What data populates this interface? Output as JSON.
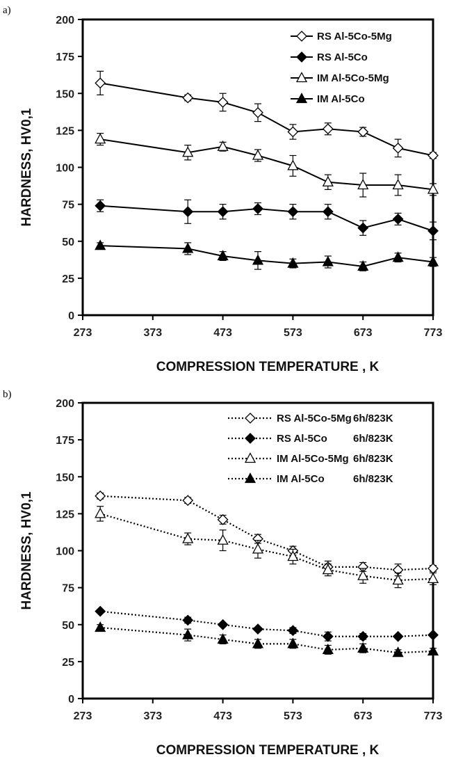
{
  "chart_data": [
    {
      "panel": "a)",
      "type": "line",
      "xlabel": "COMPRESSION TEMPERATURE , K",
      "ylabel": "HARDNESS, HV0,1",
      "xlim": [
        273,
        773
      ],
      "ylim": [
        0,
        200
      ],
      "xticks": [
        273,
        373,
        473,
        573,
        673,
        773
      ],
      "yticks": [
        0,
        25,
        50,
        75,
        100,
        125,
        150,
        175,
        200
      ],
      "grid": false,
      "legend_position": "top-right",
      "line_style": "solid",
      "series": [
        {
          "name": "RS Al-5Co-5Mg",
          "marker": "diamond-open",
          "x": [
            298,
            423,
            473,
            523,
            573,
            623,
            673,
            723,
            773
          ],
          "y": [
            157,
            147,
            144,
            137,
            124,
            126,
            124,
            113,
            108
          ],
          "err": [
            8,
            2,
            6,
            6,
            5,
            4,
            3,
            6,
            2
          ]
        },
        {
          "name": "RS Al-5Co",
          "marker": "diamond-filled",
          "x": [
            298,
            423,
            473,
            523,
            573,
            623,
            673,
            723,
            773
          ],
          "y": [
            74,
            70,
            70,
            72,
            70,
            70,
            59,
            65,
            57
          ],
          "err": [
            4,
            8,
            5,
            4,
            5,
            5,
            5,
            4,
            6
          ]
        },
        {
          "name": "IM Al-5Co-5Mg",
          "marker": "triangle-open",
          "x": [
            298,
            423,
            473,
            523,
            573,
            623,
            673,
            723,
            773
          ],
          "y": [
            119,
            110,
            114,
            108,
            101,
            90,
            88,
            88,
            85
          ],
          "err": [
            4,
            5,
            3,
            4,
            7,
            5,
            8,
            7,
            4
          ]
        },
        {
          "name": "IM Al-5Co",
          "marker": "triangle-filled",
          "x": [
            298,
            423,
            473,
            523,
            573,
            623,
            673,
            723,
            773
          ],
          "y": [
            47,
            45,
            40,
            37,
            35,
            36,
            33,
            39,
            36
          ],
          "err": [
            2,
            4,
            3,
            6,
            3,
            4,
            3,
            3,
            3
          ]
        }
      ]
    },
    {
      "panel": "b)",
      "type": "line",
      "xlabel": "COMPRESSION TEMPERATURE , K",
      "ylabel": "HARDNESS, HV0,1",
      "xlim": [
        273,
        773
      ],
      "ylim": [
        0,
        200
      ],
      "xticks": [
        273,
        373,
        473,
        573,
        673,
        773
      ],
      "yticks": [
        0,
        25,
        50,
        75,
        100,
        125,
        150,
        175,
        200
      ],
      "grid": false,
      "legend_position": "top-right",
      "line_style": "dotted",
      "series": [
        {
          "name": "RS Al-5Co-5Mg",
          "suffix": "6h/823K",
          "marker": "diamond-open",
          "x": [
            298,
            423,
            473,
            523,
            573,
            623,
            673,
            723,
            773
          ],
          "y": [
            137,
            134,
            121,
            108,
            100,
            89,
            89,
            87,
            88
          ],
          "err": [
            2,
            2,
            3,
            3,
            3,
            4,
            3,
            4,
            2
          ]
        },
        {
          "name": "RS Al-5Co",
          "suffix": "6h/823K",
          "marker": "diamond-filled",
          "x": [
            298,
            423,
            473,
            523,
            573,
            623,
            673,
            723,
            773
          ],
          "y": [
            59,
            53,
            50,
            47,
            46,
            42,
            42,
            42,
            43
          ],
          "err": [
            1,
            2,
            1,
            1,
            2,
            3,
            2,
            1,
            1
          ]
        },
        {
          "name": "IM Al-5Co-5Mg",
          "suffix": "6h/823K",
          "marker": "triangle-open",
          "x": [
            298,
            423,
            473,
            523,
            573,
            623,
            673,
            723,
            773
          ],
          "y": [
            125,
            108,
            107,
            101,
            96,
            87,
            83,
            80,
            81
          ],
          "err": [
            5,
            4,
            7,
            6,
            5,
            4,
            5,
            5,
            4
          ]
        },
        {
          "name": "IM Al-5Co",
          "suffix": "6h/823K",
          "marker": "triangle-filled",
          "x": [
            298,
            423,
            473,
            523,
            573,
            623,
            673,
            723,
            773
          ],
          "y": [
            48,
            43,
            40,
            37,
            37,
            33,
            34,
            31,
            32
          ],
          "err": [
            2,
            4,
            3,
            3,
            3,
            3,
            3,
            2,
            2
          ]
        }
      ]
    }
  ]
}
